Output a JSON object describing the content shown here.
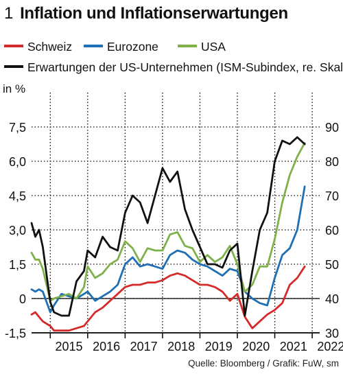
{
  "title": {
    "number": "1",
    "text": "Inflation und Inflationserwartungen"
  },
  "legend": [
    {
      "label": "Schweiz",
      "color": "#d42a2a"
    },
    {
      "label": "Eurozone",
      "color": "#1f6fb5"
    },
    {
      "label": "USA",
      "color": "#7fb04a"
    },
    {
      "label": "Erwartungen der US-Unternehmen (ISM-Subindex, re. Skala)",
      "color": "#111111"
    }
  ],
  "source": "Quelle: Bloomberg / Grafik: FuW, sm",
  "chart_data": {
    "type": "line",
    "ylabel": "in %",
    "ylim": [
      -1.5,
      9.0
    ],
    "y2lim": [
      30,
      100
    ],
    "xlim": [
      2014.5,
      2022.2
    ],
    "y_ticks": [
      "-1,5",
      "0",
      "1,5",
      "3,0",
      "4,5",
      "6,0",
      "7,5"
    ],
    "y2_ticks": [
      "30",
      "40",
      "50",
      "60",
      "70",
      "80",
      "90"
    ],
    "x_ticks": [
      "2015",
      "2016",
      "2017",
      "2018",
      "2019",
      "2020",
      "2021",
      "2022"
    ],
    "grid": true,
    "series": [
      {
        "name": "Schweiz",
        "color": "#d42a2a",
        "axis": "left",
        "x": [
          2014.5,
          2014.6,
          2014.7,
          2014.8,
          2014.9,
          2015.0,
          2015.1,
          2015.3,
          2015.5,
          2015.7,
          2015.9,
          2016.0,
          2016.2,
          2016.4,
          2016.6,
          2016.8,
          2017.0,
          2017.2,
          2017.4,
          2017.6,
          2017.8,
          2018.0,
          2018.2,
          2018.4,
          2018.6,
          2018.8,
          2019.0,
          2019.2,
          2019.4,
          2019.6,
          2019.8,
          2020.0,
          2020.2,
          2020.4,
          2020.6,
          2020.8,
          2021.0,
          2021.2,
          2021.4,
          2021.6,
          2021.8
        ],
        "values": [
          -0.7,
          -0.6,
          -0.8,
          -1.0,
          -1.1,
          -1.2,
          -1.4,
          -1.4,
          -1.4,
          -1.3,
          -1.2,
          -1.0,
          -0.6,
          -0.4,
          -0.1,
          0.2,
          0.5,
          0.6,
          0.6,
          0.7,
          0.7,
          0.8,
          1.0,
          1.1,
          1.0,
          0.8,
          0.6,
          0.6,
          0.5,
          0.3,
          -0.1,
          0.2,
          -0.8,
          -1.3,
          -1.0,
          -0.7,
          -0.5,
          -0.2,
          0.6,
          0.9,
          1.4
        ]
      },
      {
        "name": "Eurozone",
        "color": "#1f6fb5",
        "axis": "left",
        "x": [
          2014.5,
          2014.6,
          2014.7,
          2014.8,
          2015.0,
          2015.1,
          2015.3,
          2015.5,
          2015.7,
          2015.9,
          2016.0,
          2016.2,
          2016.4,
          2016.6,
          2016.8,
          2017.0,
          2017.2,
          2017.4,
          2017.6,
          2017.8,
          2018.0,
          2018.2,
          2018.4,
          2018.6,
          2018.8,
          2019.0,
          2019.2,
          2019.4,
          2019.6,
          2019.8,
          2020.0,
          2020.2,
          2020.4,
          2020.6,
          2020.8,
          2021.0,
          2021.2,
          2021.4,
          2021.6,
          2021.8
        ],
        "values": [
          0.4,
          0.3,
          0.4,
          0.3,
          -0.6,
          -0.3,
          0.2,
          0.1,
          0.0,
          0.2,
          0.3,
          -0.1,
          0.1,
          0.3,
          0.6,
          1.5,
          1.8,
          1.4,
          1.5,
          1.4,
          1.3,
          1.9,
          2.1,
          2.0,
          1.7,
          1.5,
          1.4,
          1.2,
          1.0,
          1.3,
          1.2,
          0.3,
          0.0,
          -0.2,
          -0.3,
          0.9,
          1.9,
          2.2,
          3.0,
          4.9
        ]
      },
      {
        "name": "USA",
        "color": "#7fb04a",
        "axis": "left",
        "x": [
          2014.5,
          2014.6,
          2014.7,
          2014.8,
          2015.0,
          2015.1,
          2015.3,
          2015.5,
          2015.7,
          2015.9,
          2016.0,
          2016.2,
          2016.4,
          2016.6,
          2016.8,
          2017.0,
          2017.2,
          2017.4,
          2017.6,
          2017.8,
          2018.0,
          2018.2,
          2018.4,
          2018.6,
          2018.8,
          2019.0,
          2019.2,
          2019.4,
          2019.6,
          2019.8,
          2020.0,
          2020.2,
          2020.4,
          2020.6,
          2020.8,
          2021.0,
          2021.2,
          2021.4,
          2021.6,
          2021.8
        ],
        "values": [
          2.0,
          1.7,
          1.7,
          1.3,
          -0.1,
          0.0,
          0.1,
          0.2,
          0.0,
          0.5,
          1.4,
          0.9,
          1.1,
          1.5,
          1.7,
          2.5,
          2.2,
          1.6,
          2.2,
          2.1,
          2.1,
          2.8,
          2.9,
          2.3,
          2.2,
          1.6,
          1.9,
          1.6,
          1.8,
          2.3,
          1.5,
          0.3,
          0.6,
          1.4,
          1.4,
          2.6,
          4.2,
          5.4,
          6.2,
          6.8
        ]
      },
      {
        "name": "Erwartungen der US-Unternehmen (ISM-Subindex, re. Skala)",
        "color": "#111111",
        "axis": "right",
        "x": [
          2014.5,
          2014.6,
          2014.7,
          2014.8,
          2015.0,
          2015.1,
          2015.3,
          2015.5,
          2015.7,
          2015.9,
          2016.0,
          2016.2,
          2016.4,
          2016.6,
          2016.8,
          2017.0,
          2017.2,
          2017.4,
          2017.6,
          2017.8,
          2018.0,
          2018.2,
          2018.4,
          2018.6,
          2018.8,
          2019.0,
          2019.2,
          2019.4,
          2019.6,
          2019.8,
          2020.0,
          2020.2,
          2020.4,
          2020.6,
          2020.8,
          2021.0,
          2021.2,
          2021.4,
          2021.6,
          2021.8
        ],
        "values": [
          62.0,
          58.0,
          60.0,
          55.0,
          39.0,
          36.0,
          35.0,
          35.0,
          45.0,
          48.0,
          54.0,
          52.0,
          58.0,
          55.0,
          54.0,
          65.0,
          70.0,
          68.0,
          62.0,
          70.0,
          78.0,
          74.0,
          77.0,
          66.0,
          60.0,
          55.0,
          50.0,
          50.0,
          49.0,
          54.0,
          56.0,
          35.0,
          48.0,
          60.0,
          65.0,
          80.0,
          86.0,
          85.0,
          87.0,
          85.0
        ]
      }
    ]
  }
}
